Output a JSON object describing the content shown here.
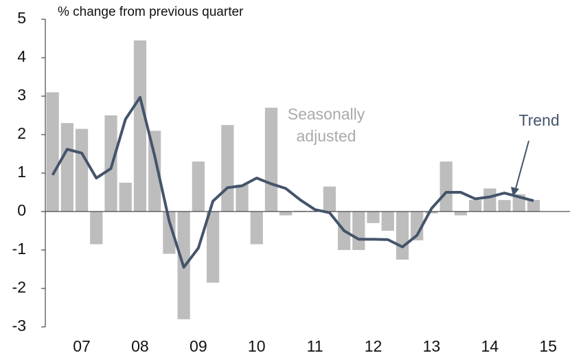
{
  "chart_data": {
    "type": "bar",
    "subtitle": "% change from previous quarter",
    "x": [
      0,
      1,
      2,
      3,
      4,
      5,
      6,
      7,
      8,
      9,
      10,
      11,
      12,
      13,
      14,
      15,
      16,
      17,
      18,
      19,
      20,
      21,
      22,
      23,
      24,
      25,
      26,
      27,
      28,
      29,
      30,
      31,
      32,
      33
    ],
    "xlim": [
      -0.5,
      35.5
    ],
    "xticks": [
      {
        "value": 2,
        "label": "07"
      },
      {
        "value": 6,
        "label": "08"
      },
      {
        "value": 10,
        "label": "09"
      },
      {
        "value": 14,
        "label": "10"
      },
      {
        "value": 18,
        "label": "11"
      },
      {
        "value": 22,
        "label": "12"
      },
      {
        "value": 26,
        "label": "13"
      },
      {
        "value": 30,
        "label": "14"
      },
      {
        "value": 34,
        "label": "15"
      }
    ],
    "ylim": [
      -3,
      5
    ],
    "yticks": [
      -3,
      -2,
      -1,
      0,
      1,
      2,
      3,
      4,
      5
    ],
    "series": [
      {
        "name": "Seasonally adjusted",
        "type": "bar",
        "color": "#bdbdbd",
        "values": [
          3.1,
          2.3,
          2.15,
          -0.85,
          2.5,
          0.75,
          4.45,
          2.1,
          -1.1,
          -2.8,
          1.3,
          -1.85,
          2.25,
          0.7,
          -0.85,
          2.7,
          -0.1,
          0.02,
          0.02,
          0.65,
          -1.0,
          -1.0,
          -0.3,
          -0.5,
          -1.25,
          -0.75,
          -0.05,
          1.3,
          -0.1,
          0.3,
          0.6,
          0.3,
          0.45,
          0.3
        ]
      },
      {
        "name": "Trend",
        "type": "line",
        "color": "#44546a",
        "values": [
          0.95,
          1.62,
          1.52,
          0.87,
          1.12,
          2.4,
          2.97,
          1.45,
          -0.25,
          -1.45,
          -0.95,
          0.27,
          0.62,
          0.67,
          0.87,
          0.72,
          0.6,
          0.3,
          0.05,
          -0.03,
          -0.5,
          -0.72,
          -0.72,
          -0.73,
          -0.92,
          -0.62,
          0.08,
          0.5,
          0.5,
          0.33,
          0.38,
          0.48,
          0.38,
          0.28
        ]
      }
    ]
  }
}
